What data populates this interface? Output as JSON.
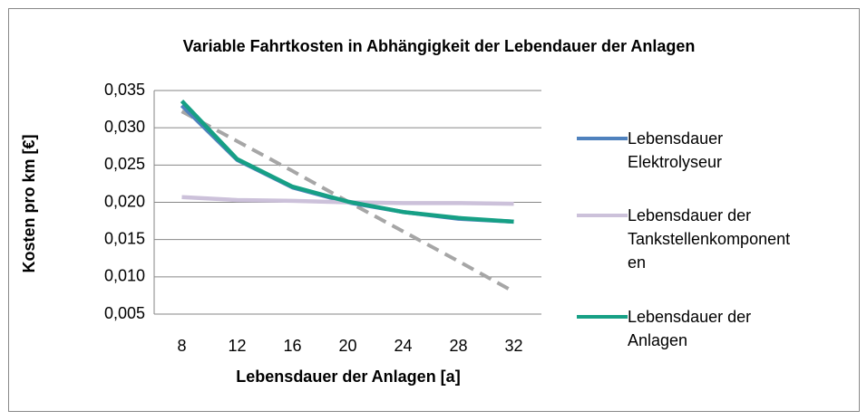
{
  "chart_data": {
    "type": "line",
    "title": "Variable Fahrtkosten in Abhängigkeit der Lebendauer der Anlagen",
    "x_label": "Lebensdauer der Anlagen [a]",
    "y_label": "Kosten pro km [€]",
    "categories": [
      "8",
      "12",
      "16",
      "20",
      "24",
      "28",
      "32"
    ],
    "ylim": [
      0.005,
      0.035
    ],
    "yticks": [
      {
        "value": 0.005,
        "label": "0,005"
      },
      {
        "value": 0.01,
        "label": "0,010"
      },
      {
        "value": 0.015,
        "label": "0,015"
      },
      {
        "value": 0.02,
        "label": "0,020"
      },
      {
        "value": 0.025,
        "label": "0,025"
      },
      {
        "value": 0.03,
        "label": "0,030"
      },
      {
        "value": 0.035,
        "label": "0,035"
      }
    ],
    "grid": true,
    "legend": "right",
    "series": [
      {
        "name": "Lebensdauer Elektrolyseur",
        "color": "#4f81bd",
        "values": [
          0.033,
          0.0257,
          0.022,
          0.02,
          0.0187,
          0.0178,
          0.0174
        ]
      },
      {
        "name": "Lebensdauer der Tankstellenkomponenten",
        "color": "#ccc1da",
        "values": [
          0.0207,
          0.0203,
          0.0202,
          0.02,
          0.0199,
          0.0199,
          0.0198
        ]
      },
      {
        "name": "Lebensdauer der Anlagen",
        "color": "#16a085",
        "values": [
          0.0336,
          0.0258,
          0.0221,
          0.0201,
          0.0187,
          0.0179,
          0.0174
        ]
      }
    ],
    "trendline": {
      "color": "#a6a6a6",
      "dashed": true,
      "values": [
        0.0322,
        0.0282,
        0.0242,
        0.0201,
        0.0161,
        0.0121,
        0.008
      ]
    }
  }
}
